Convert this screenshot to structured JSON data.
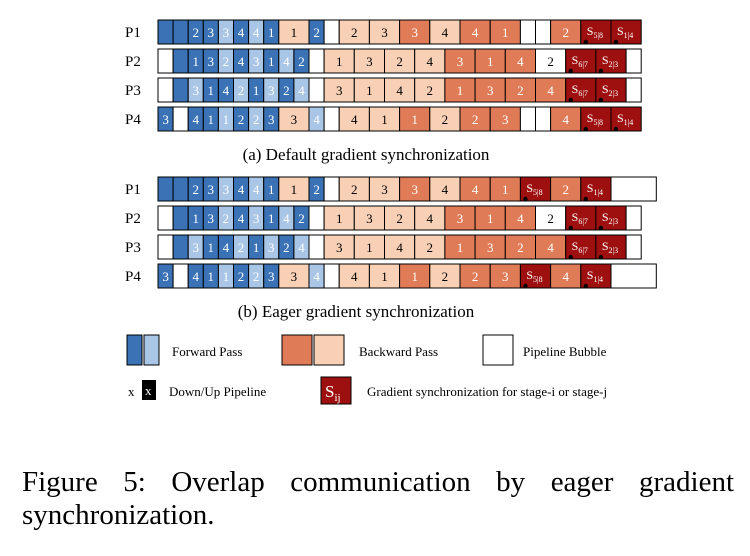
{
  "colors": {
    "fwd_dark": "#3a72b5",
    "fwd_light": "#a9c6e6",
    "bwd_dark": "#e07b58",
    "bwd_light": "#f7d0b6",
    "sync": "#9e1010",
    "bubble": "#ffffff",
    "border": "#000000"
  },
  "diagrams": [
    {
      "caption": "(a) Default gradient synchronization",
      "rows": [
        {
          "label": "P1",
          "cells": [
            {
              "t": "fb",
              "w": 1
            },
            {
              "t": "fb",
              "w": 1
            },
            {
              "t": "fb",
              "w": 1,
              "s": "2"
            },
            {
              "t": "fb",
              "w": 1,
              "s": "3"
            },
            {
              "t": "fl",
              "w": 1,
              "s": "3"
            },
            {
              "t": "fb",
              "w": 1,
              "s": "4"
            },
            {
              "t": "fl",
              "w": 1,
              "s": "4"
            },
            {
              "t": "fb",
              "w": 1,
              "s": "1"
            },
            {
              "t": "bl",
              "w": 2,
              "s": "1"
            },
            {
              "t": "fb",
              "w": 1,
              "s": "2"
            },
            {
              "t": "b",
              "w": 1
            },
            {
              "t": "bl",
              "w": 2,
              "s": "2"
            },
            {
              "t": "bl",
              "w": 2,
              "s": "3"
            },
            {
              "t": "bd",
              "w": 2,
              "s": "3"
            },
            {
              "t": "bl",
              "w": 2,
              "s": "4"
            },
            {
              "t": "bd",
              "w": 2,
              "s": "4"
            },
            {
              "t": "bd",
              "w": 2,
              "s": "1"
            },
            {
              "t": "b",
              "w": 1
            },
            {
              "t": "b",
              "w": 1
            },
            {
              "t": "bd",
              "w": 2,
              "s": "2"
            },
            {
              "t": "s",
              "w": 2,
              "s": "5|8"
            },
            {
              "t": "s",
              "w": 2,
              "s": "1|4"
            }
          ]
        },
        {
          "label": "P2",
          "cells": [
            {
              "t": "b",
              "w": 1
            },
            {
              "t": "fb",
              "w": 1
            },
            {
              "t": "fb",
              "w": 1,
              "s": "1"
            },
            {
              "t": "fb",
              "w": 1,
              "s": "3"
            },
            {
              "t": "fl",
              "w": 1,
              "s": "2"
            },
            {
              "t": "fb",
              "w": 1,
              "s": "4"
            },
            {
              "t": "fl",
              "w": 1,
              "s": "3"
            },
            {
              "t": "fb",
              "w": 1,
              "s": "1"
            },
            {
              "t": "fl",
              "w": 1,
              "s": "4"
            },
            {
              "t": "fb",
              "w": 1,
              "s": "2"
            },
            {
              "t": "b",
              "w": 1
            },
            {
              "t": "bl",
              "w": 2,
              "s": "1"
            },
            {
              "t": "bl",
              "w": 2,
              "s": "3"
            },
            {
              "t": "bl",
              "w": 2,
              "s": "2"
            },
            {
              "t": "bl",
              "w": 2,
              "s": "4"
            },
            {
              "t": "bd",
              "w": 2,
              "s": "3"
            },
            {
              "t": "bd",
              "w": 2,
              "s": "1"
            },
            {
              "t": "bd",
              "w": 2,
              "s": "4"
            },
            {
              "t": "b",
              "w": 2,
              "s": "2"
            },
            {
              "t": "s",
              "w": 2,
              "s": "6|7"
            },
            {
              "t": "s",
              "w": 2,
              "s": "2|3"
            },
            {
              "t": "b",
              "w": 1
            }
          ]
        },
        {
          "label": "P3",
          "cells": [
            {
              "t": "b",
              "w": 1
            },
            {
              "t": "fb",
              "w": 1
            },
            {
              "t": "fl",
              "w": 1,
              "s": "3"
            },
            {
              "t": "fb",
              "w": 1,
              "s": "1"
            },
            {
              "t": "fb",
              "w": 1,
              "s": "4"
            },
            {
              "t": "fl",
              "w": 1,
              "s": "2"
            },
            {
              "t": "fb",
              "w": 1,
              "s": "1"
            },
            {
              "t": "fl",
              "w": 1,
              "s": "3"
            },
            {
              "t": "fb",
              "w": 1,
              "s": "2"
            },
            {
              "t": "fl",
              "w": 1,
              "s": "4"
            },
            {
              "t": "b",
              "w": 1
            },
            {
              "t": "bl",
              "w": 2,
              "s": "3"
            },
            {
              "t": "bl",
              "w": 2,
              "s": "1"
            },
            {
              "t": "bl",
              "w": 2,
              "s": "4"
            },
            {
              "t": "bl",
              "w": 2,
              "s": "2"
            },
            {
              "t": "bd",
              "w": 2,
              "s": "1"
            },
            {
              "t": "bd",
              "w": 2,
              "s": "3"
            },
            {
              "t": "bd",
              "w": 2,
              "s": "2"
            },
            {
              "t": "bd",
              "w": 2,
              "s": "4"
            },
            {
              "t": "s",
              "w": 2,
              "s": "6|7"
            },
            {
              "t": "s",
              "w": 2,
              "s": "2|3"
            },
            {
              "t": "b",
              "w": 1
            }
          ]
        },
        {
          "label": "P4",
          "cells": [
            {
              "t": "fb",
              "w": 1,
              "s": "3"
            },
            {
              "t": "b",
              "w": 1
            },
            {
              "t": "fb",
              "w": 1,
              "s": "4"
            },
            {
              "t": "fb",
              "w": 1,
              "s": "1"
            },
            {
              "t": "fl",
              "w": 1,
              "s": "1"
            },
            {
              "t": "fb",
              "w": 1,
              "s": "2"
            },
            {
              "t": "fl",
              "w": 1,
              "s": "2"
            },
            {
              "t": "fb",
              "w": 1,
              "s": "3"
            },
            {
              "t": "bl",
              "w": 2,
              "s": "3"
            },
            {
              "t": "fl",
              "w": 1,
              "s": "4"
            },
            {
              "t": "b",
              "w": 1
            },
            {
              "t": "bl",
              "w": 2,
              "s": "4"
            },
            {
              "t": "bl",
              "w": 2,
              "s": "1"
            },
            {
              "t": "bd",
              "w": 2,
              "s": "1"
            },
            {
              "t": "bl",
              "w": 2,
              "s": "2"
            },
            {
              "t": "bd",
              "w": 2,
              "s": "2"
            },
            {
              "t": "bd",
              "w": 2,
              "s": "3"
            },
            {
              "t": "b",
              "w": 1
            },
            {
              "t": "b",
              "w": 1
            },
            {
              "t": "bd",
              "w": 2,
              "s": "4"
            },
            {
              "t": "s",
              "w": 2,
              "s": "5|8"
            },
            {
              "t": "s",
              "w": 2,
              "s": "1|4"
            }
          ]
        }
      ]
    },
    {
      "caption": "(b) Eager gradient synchronization",
      "rows": [
        {
          "label": "P1",
          "cells": [
            {
              "t": "fb",
              "w": 1
            },
            {
              "t": "fb",
              "w": 1
            },
            {
              "t": "fb",
              "w": 1,
              "s": "2"
            },
            {
              "t": "fb",
              "w": 1,
              "s": "3"
            },
            {
              "t": "fl",
              "w": 1,
              "s": "3"
            },
            {
              "t": "fb",
              "w": 1,
              "s": "4"
            },
            {
              "t": "fl",
              "w": 1,
              "s": "4"
            },
            {
              "t": "fb",
              "w": 1,
              "s": "1"
            },
            {
              "t": "bl",
              "w": 2,
              "s": "1"
            },
            {
              "t": "fb",
              "w": 1,
              "s": "2"
            },
            {
              "t": "b",
              "w": 1
            },
            {
              "t": "bl",
              "w": 2,
              "s": "2"
            },
            {
              "t": "bl",
              "w": 2,
              "s": "3"
            },
            {
              "t": "bd",
              "w": 2,
              "s": "3"
            },
            {
              "t": "bl",
              "w": 2,
              "s": "4"
            },
            {
              "t": "bd",
              "w": 2,
              "s": "4"
            },
            {
              "t": "bd",
              "w": 2,
              "s": "1"
            },
            {
              "t": "s",
              "w": 2,
              "s": "5|8"
            },
            {
              "t": "bd",
              "w": 2,
              "s": "2"
            },
            {
              "t": "s",
              "w": 2,
              "s": "1|4"
            },
            {
              "t": "b",
              "w": 3
            }
          ]
        },
        {
          "label": "P2",
          "cells": [
            {
              "t": "b",
              "w": 1
            },
            {
              "t": "fb",
              "w": 1
            },
            {
              "t": "fb",
              "w": 1,
              "s": "1"
            },
            {
              "t": "fb",
              "w": 1,
              "s": "3"
            },
            {
              "t": "fl",
              "w": 1,
              "s": "2"
            },
            {
              "t": "fb",
              "w": 1,
              "s": "4"
            },
            {
              "t": "fl",
              "w": 1,
              "s": "3"
            },
            {
              "t": "fb",
              "w": 1,
              "s": "1"
            },
            {
              "t": "fl",
              "w": 1,
              "s": "4"
            },
            {
              "t": "fb",
              "w": 1,
              "s": "2"
            },
            {
              "t": "b",
              "w": 1
            },
            {
              "t": "bl",
              "w": 2,
              "s": "1"
            },
            {
              "t": "bl",
              "w": 2,
              "s": "3"
            },
            {
              "t": "bl",
              "w": 2,
              "s": "2"
            },
            {
              "t": "bl",
              "w": 2,
              "s": "4"
            },
            {
              "t": "bd",
              "w": 2,
              "s": "3"
            },
            {
              "t": "bd",
              "w": 2,
              "s": "1"
            },
            {
              "t": "bd",
              "w": 2,
              "s": "4"
            },
            {
              "t": "b",
              "w": 2,
              "s": "2"
            },
            {
              "t": "s",
              "w": 2,
              "s": "6|7"
            },
            {
              "t": "s",
              "w": 2,
              "s": "2|3"
            },
            {
              "t": "b",
              "w": 1
            }
          ]
        },
        {
          "label": "P3",
          "cells": [
            {
              "t": "b",
              "w": 1
            },
            {
              "t": "fb",
              "w": 1
            },
            {
              "t": "fl",
              "w": 1,
              "s": "3"
            },
            {
              "t": "fb",
              "w": 1,
              "s": "1"
            },
            {
              "t": "fb",
              "w": 1,
              "s": "4"
            },
            {
              "t": "fl",
              "w": 1,
              "s": "2"
            },
            {
              "t": "fb",
              "w": 1,
              "s": "1"
            },
            {
              "t": "fl",
              "w": 1,
              "s": "3"
            },
            {
              "t": "fb",
              "w": 1,
              "s": "2"
            },
            {
              "t": "fl",
              "w": 1,
              "s": "4"
            },
            {
              "t": "b",
              "w": 1
            },
            {
              "t": "bl",
              "w": 2,
              "s": "3"
            },
            {
              "t": "bl",
              "w": 2,
              "s": "1"
            },
            {
              "t": "bl",
              "w": 2,
              "s": "4"
            },
            {
              "t": "bl",
              "w": 2,
              "s": "2"
            },
            {
              "t": "bd",
              "w": 2,
              "s": "1"
            },
            {
              "t": "bd",
              "w": 2,
              "s": "3"
            },
            {
              "t": "bd",
              "w": 2,
              "s": "2"
            },
            {
              "t": "bd",
              "w": 2,
              "s": "4"
            },
            {
              "t": "s",
              "w": 2,
              "s": "6|7"
            },
            {
              "t": "s",
              "w": 2,
              "s": "2|3"
            },
            {
              "t": "b",
              "w": 1
            }
          ]
        },
        {
          "label": "P4",
          "cells": [
            {
              "t": "fb",
              "w": 1,
              "s": "3"
            },
            {
              "t": "b",
              "w": 1
            },
            {
              "t": "fb",
              "w": 1,
              "s": "4"
            },
            {
              "t": "fb",
              "w": 1,
              "s": "1"
            },
            {
              "t": "fl",
              "w": 1,
              "s": "1"
            },
            {
              "t": "fb",
              "w": 1,
              "s": "2"
            },
            {
              "t": "fl",
              "w": 1,
              "s": "2"
            },
            {
              "t": "fb",
              "w": 1,
              "s": "3"
            },
            {
              "t": "bl",
              "w": 2,
              "s": "3"
            },
            {
              "t": "fl",
              "w": 1,
              "s": "4"
            },
            {
              "t": "b",
              "w": 1
            },
            {
              "t": "bl",
              "w": 2,
              "s": "4"
            },
            {
              "t": "bl",
              "w": 2,
              "s": "1"
            },
            {
              "t": "bd",
              "w": 2,
              "s": "1"
            },
            {
              "t": "bl",
              "w": 2,
              "s": "2"
            },
            {
              "t": "bd",
              "w": 2,
              "s": "2"
            },
            {
              "t": "bd",
              "w": 2,
              "s": "3"
            },
            {
              "t": "s",
              "w": 2,
              "s": "5|8"
            },
            {
              "t": "bd",
              "w": 2,
              "s": "4"
            },
            {
              "t": "s",
              "w": 2,
              "s": "1|4"
            },
            {
              "t": "b",
              "w": 3
            }
          ]
        }
      ]
    }
  ],
  "legend": {
    "forward_pass": "Forward Pass",
    "backward_pass": "Backward Pass",
    "pipeline_bubble": "Pipeline Bubble",
    "down_up_x": "x",
    "down_up_pipeline": "Down/Up Pipeline",
    "sync_symbol": "S",
    "sync_subscript": "ij",
    "sync_desc": "Gradient synchronization for stage-i or stage-j"
  },
  "figure_caption": "Figure 5: Overlap communication by eager gradient synchronization."
}
